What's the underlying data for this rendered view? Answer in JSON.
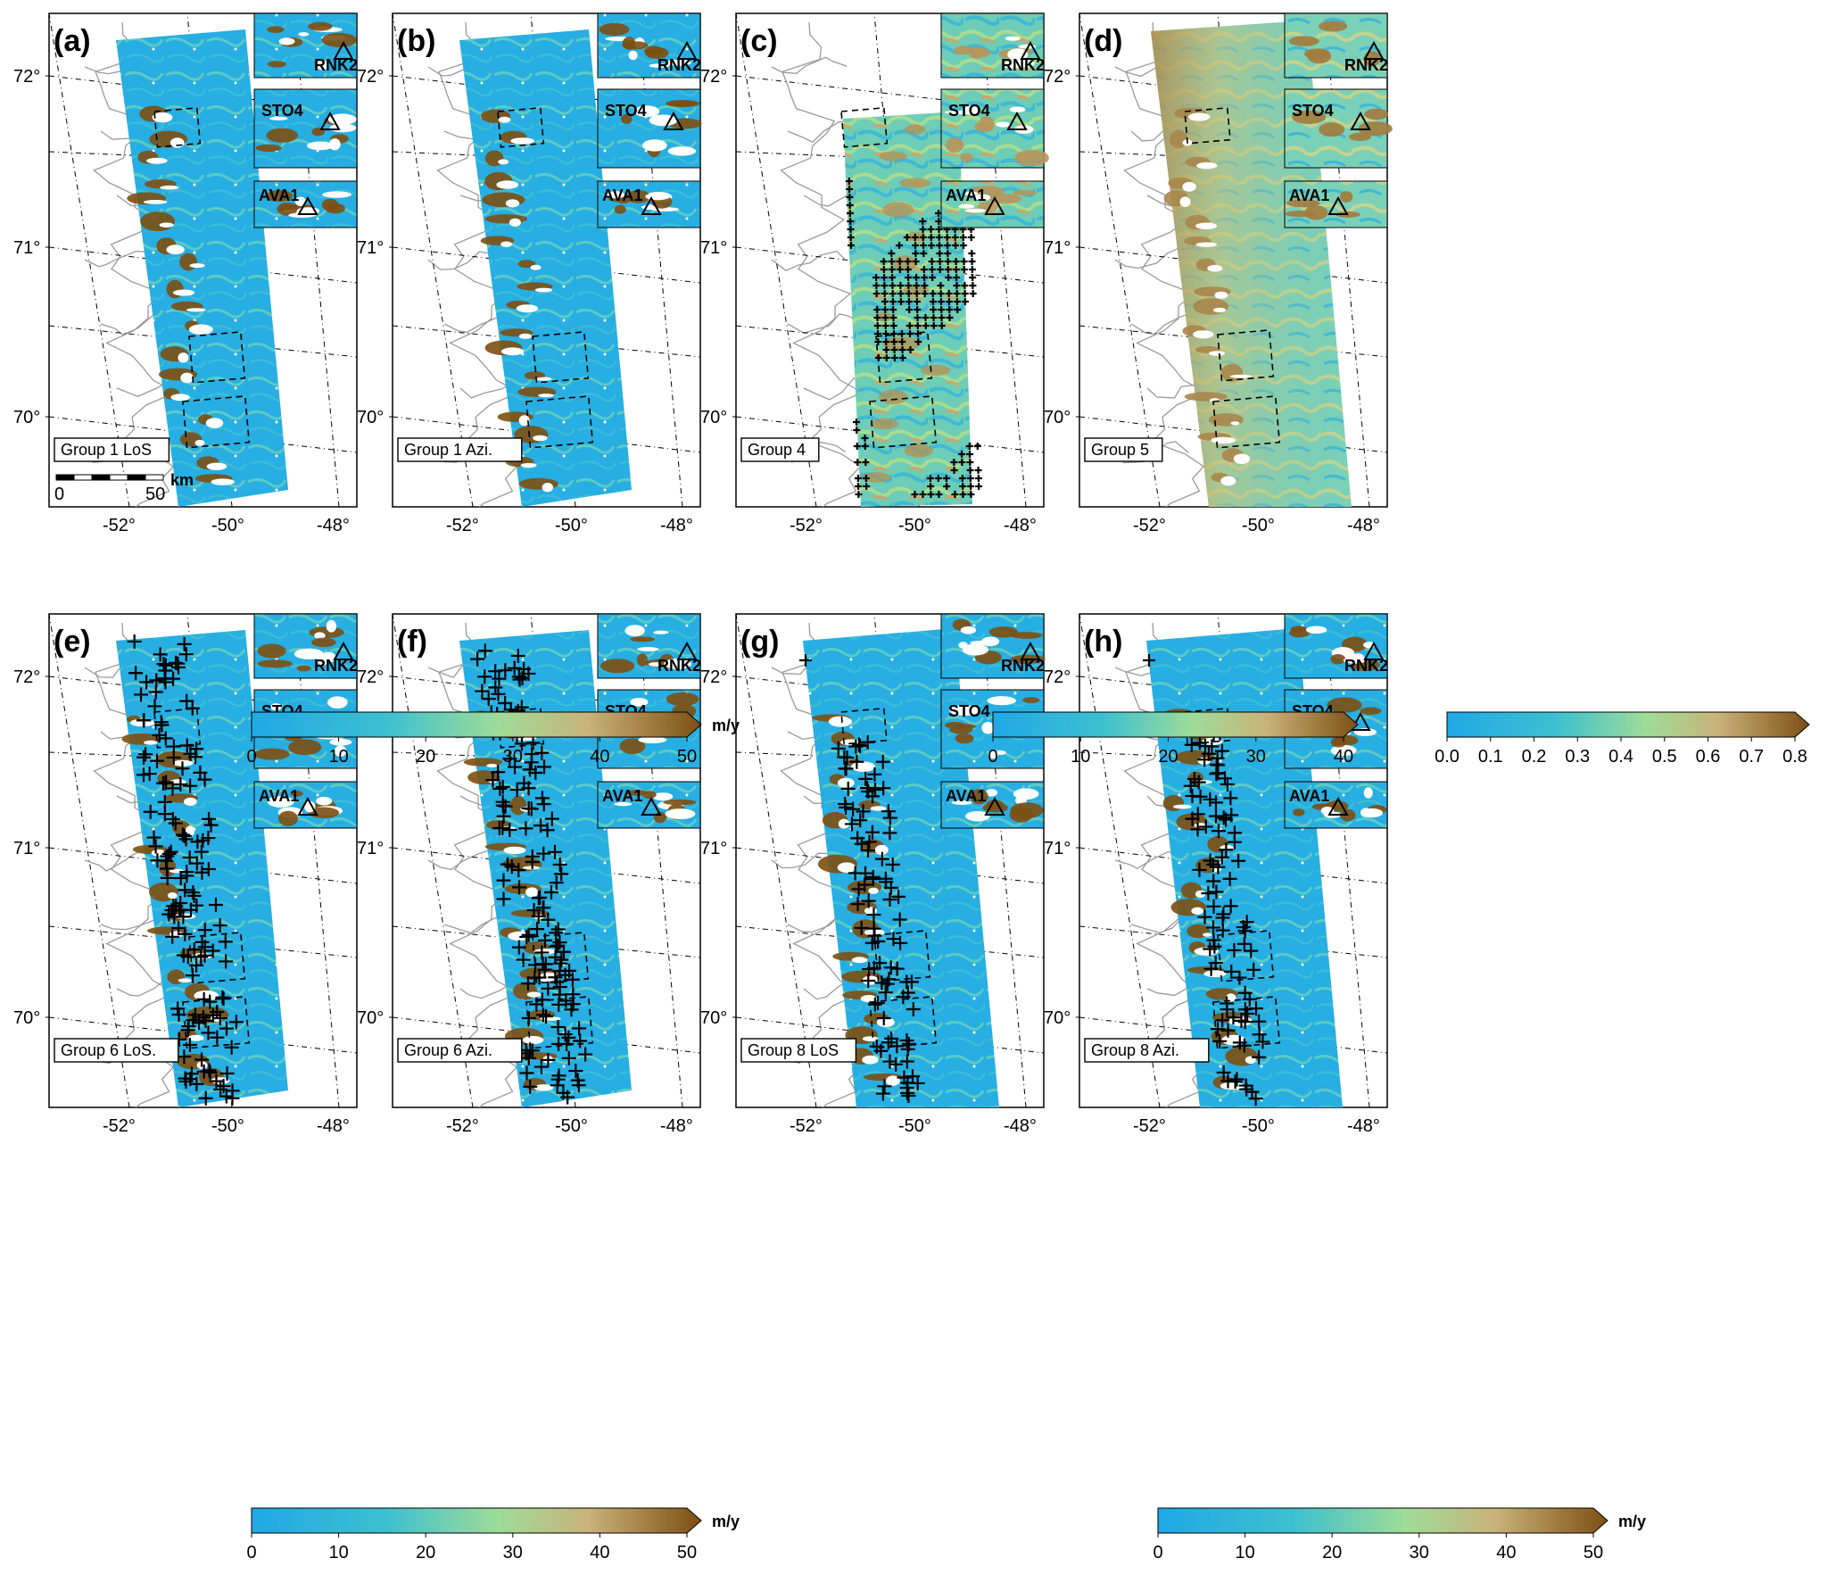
{
  "colors": {
    "low": "#1fa8e6",
    "mid": "#8ed9a2",
    "midhigh": "#c7b07a",
    "high": "#7d4f12",
    "coast": "#9a9a9a",
    "frame": "#000000"
  },
  "latitude_ticks": [
    "72°",
    "71°",
    "70°"
  ],
  "longitude_ticks": [
    "-52°",
    "-50°",
    "-48°"
  ],
  "scalebar": {
    "start": "0",
    "end": "50",
    "unit": "km"
  },
  "station_labels": [
    "RNK2",
    "STO4",
    "AVA1"
  ],
  "panels": [
    {
      "id": "a",
      "label": "(a)",
      "group": "Group 1 LoS",
      "style": "velocity",
      "crosses": "none"
    },
    {
      "id": "b",
      "label": "(b)",
      "group": "Group 1 Azi.",
      "style": "velocity",
      "crosses": "none"
    },
    {
      "id": "c",
      "label": "(c)",
      "group": "Group 4",
      "style": "velocity-mid",
      "crosses": "dense"
    },
    {
      "id": "d",
      "label": "(d)",
      "group": "Group 5",
      "style": "uncertainty",
      "crosses": "none"
    },
    {
      "id": "e",
      "label": "(e)",
      "group": "Group 6 LoS.",
      "style": "velocity",
      "crosses": "coastal"
    },
    {
      "id": "f",
      "label": "(f)",
      "group": "Group 6 Azi.",
      "style": "velocity",
      "crosses": "coastal"
    },
    {
      "id": "g",
      "label": "(g)",
      "group": "Group 8 LoS",
      "style": "velocity",
      "crosses": "sparse"
    },
    {
      "id": "h",
      "label": "(h)",
      "group": "Group 8 Azi.",
      "style": "velocity",
      "crosses": "sparse"
    }
  ],
  "colorbars": [
    {
      "id": "cb1",
      "ticks": [
        "0",
        "10",
        "20",
        "30",
        "40",
        "50"
      ],
      "unit": "m/y"
    },
    {
      "id": "cb2",
      "ticks": [
        "0",
        "10",
        "20",
        "30",
        "40"
      ],
      "unit": ""
    },
    {
      "id": "cb3",
      "ticks": [
        "0.0",
        "0.1",
        "0.2",
        "0.3",
        "0.4",
        "0.5",
        "0.6",
        "0.7",
        "0.8"
      ],
      "unit": ""
    },
    {
      "id": "cb4",
      "ticks": [
        "0",
        "10",
        "20",
        "30",
        "40",
        "50"
      ],
      "unit": "m/y"
    },
    {
      "id": "cb5",
      "ticks": [
        "0",
        "10",
        "20",
        "30",
        "40",
        "50"
      ],
      "unit": "m/y"
    }
  ]
}
